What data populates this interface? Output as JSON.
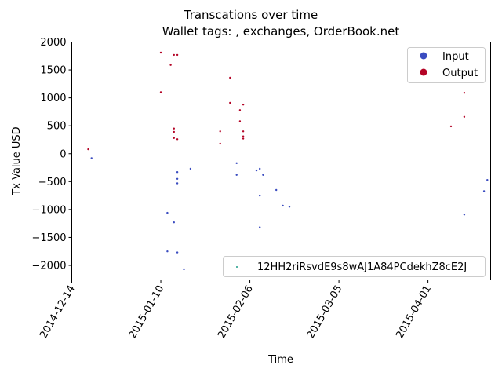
{
  "chart_data": {
    "type": "scatter",
    "title": "Transcations over time",
    "subtitle": "Wallet tags: , exchanges, OrderBook.net",
    "xlabel": "Time",
    "ylabel": "Tx Value USD",
    "x_type": "date",
    "xlim": [
      "2014-12-14",
      "2015-04-20"
    ],
    "ylim": [
      -2260,
      2000
    ],
    "x_ticks": [
      "2014-12-14",
      "2015-01-10",
      "2015-02-06",
      "2015-03-05",
      "2015-04-01"
    ],
    "y_ticks": [
      2000,
      1500,
      1000,
      500,
      0,
      -500,
      -1000,
      -1500,
      -2000
    ],
    "grid": false,
    "legend_position": "top-right",
    "address_legend_position": "bottom-right",
    "address_label": "12HH2riRsvdE9s8wAJ1A84PCdekhZ8cE2J",
    "colors": {
      "input": "#3a4cc0",
      "output": "#b40426",
      "address": "#1f9e89"
    },
    "series": [
      {
        "name": "Input",
        "points": [
          {
            "x": "2014-12-20",
            "y": -80
          },
          {
            "x": "2015-01-12",
            "y": -1060
          },
          {
            "x": "2015-01-12",
            "y": -1750
          },
          {
            "x": "2015-01-14",
            "y": -1230
          },
          {
            "x": "2015-01-15",
            "y": -1770
          },
          {
            "x": "2015-01-15",
            "y": -330
          },
          {
            "x": "2015-01-15",
            "y": -450
          },
          {
            "x": "2015-01-15",
            "y": -530
          },
          {
            "x": "2015-01-17",
            "y": -2070
          },
          {
            "x": "2015-01-19",
            "y": -270
          },
          {
            "x": "2015-02-02",
            "y": -170
          },
          {
            "x": "2015-02-02",
            "y": -380
          },
          {
            "x": "2015-02-08",
            "y": -300
          },
          {
            "x": "2015-02-09",
            "y": -270
          },
          {
            "x": "2015-02-09",
            "y": -750
          },
          {
            "x": "2015-02-09",
            "y": -1320
          },
          {
            "x": "2015-02-10",
            "y": -380
          },
          {
            "x": "2015-02-14",
            "y": -650
          },
          {
            "x": "2015-02-16",
            "y": -930
          },
          {
            "x": "2015-02-18",
            "y": -950
          },
          {
            "x": "2015-04-12",
            "y": -1090
          },
          {
            "x": "2015-04-18",
            "y": -670
          },
          {
            "x": "2015-04-19",
            "y": -470
          }
        ]
      },
      {
        "name": "Output",
        "points": [
          {
            "x": "2014-12-19",
            "y": 80
          },
          {
            "x": "2015-01-10",
            "y": 1810
          },
          {
            "x": "2015-01-10",
            "y": 1100
          },
          {
            "x": "2015-01-13",
            "y": 1590
          },
          {
            "x": "2015-01-14",
            "y": 1770
          },
          {
            "x": "2015-01-15",
            "y": 1770
          },
          {
            "x": "2015-01-14",
            "y": 450
          },
          {
            "x": "2015-01-14",
            "y": 390
          },
          {
            "x": "2015-01-14",
            "y": 280
          },
          {
            "x": "2015-01-15",
            "y": 260
          },
          {
            "x": "2015-01-28",
            "y": 400
          },
          {
            "x": "2015-01-28",
            "y": 180
          },
          {
            "x": "2015-01-31",
            "y": 1360
          },
          {
            "x": "2015-01-31",
            "y": 910
          },
          {
            "x": "2015-02-03",
            "y": 780
          },
          {
            "x": "2015-02-03",
            "y": 580
          },
          {
            "x": "2015-02-04",
            "y": 880
          },
          {
            "x": "2015-02-04",
            "y": 400
          },
          {
            "x": "2015-02-04",
            "y": 310
          },
          {
            "x": "2015-02-04",
            "y": 270
          },
          {
            "x": "2015-04-08",
            "y": 490
          },
          {
            "x": "2015-04-12",
            "y": 1090
          },
          {
            "x": "2015-04-12",
            "y": 660
          }
        ]
      }
    ]
  }
}
